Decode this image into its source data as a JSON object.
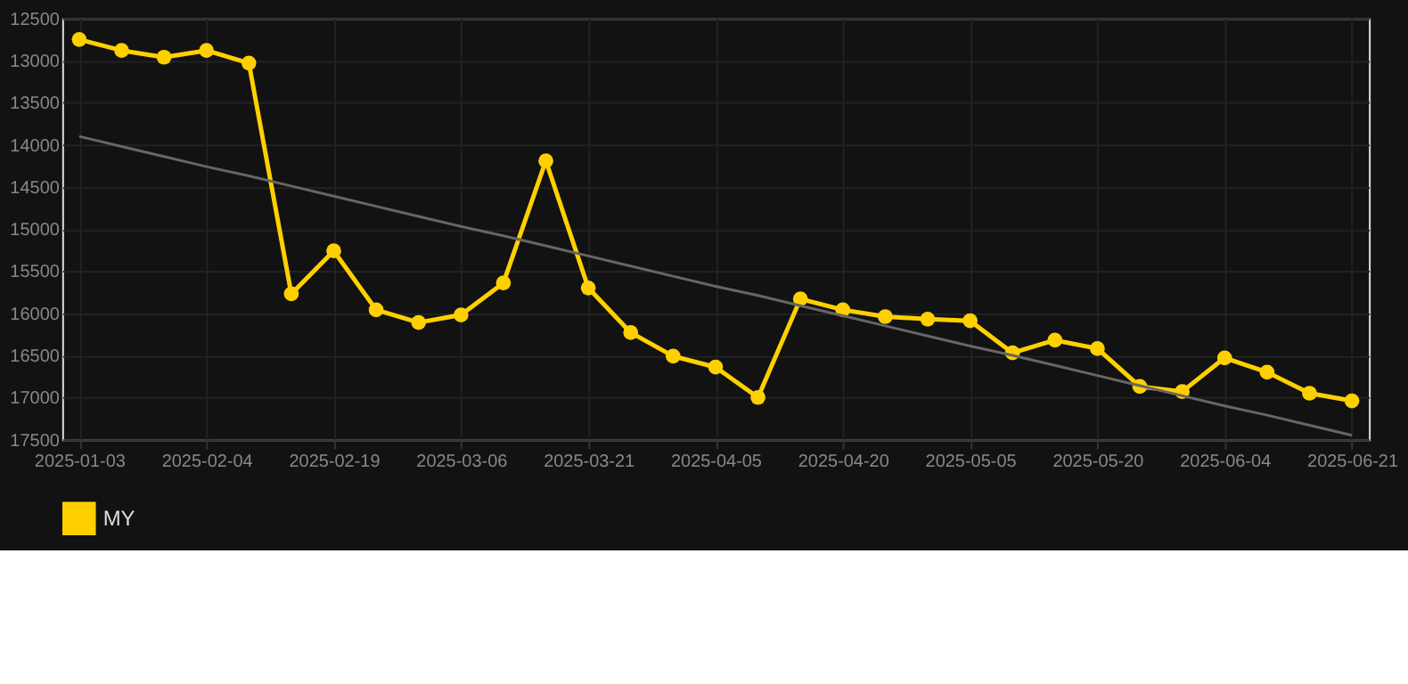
{
  "chart_data": {
    "type": "line",
    "categories": [
      "2025-01-03",
      null,
      null,
      "2025-02-04",
      null,
      null,
      "2025-02-19",
      null,
      null,
      "2025-03-06",
      null,
      null,
      "2025-03-21",
      null,
      null,
      "2025-04-05",
      null,
      null,
      "2025-04-20",
      null,
      null,
      "2025-05-05",
      null,
      null,
      "2025-05-20",
      null,
      null,
      "2025-06-04",
      null,
      null,
      "2025-06-21"
    ],
    "series": [
      {
        "name": "MY",
        "color": "#ffd000",
        "marker": "circle",
        "values": [
          12750,
          12880,
          12960,
          12880,
          13030,
          15770,
          15260,
          15960,
          16110,
          16020,
          15640,
          14190,
          15700,
          16230,
          16510,
          16640,
          17000,
          15830,
          15960,
          16040,
          16070,
          16090,
          16470,
          16320,
          16420,
          16870,
          16930,
          16530,
          16700,
          16950,
          17040
        ]
      },
      {
        "type": "line",
        "color": "#666666",
        "marker": "none",
        "values": [
          13900,
          14020,
          14140,
          14260,
          14370,
          14490,
          14610,
          14730,
          14850,
          14970,
          15080,
          15200,
          15320,
          15440,
          15560,
          15680,
          15790,
          15910,
          16030,
          16150,
          16270,
          16390,
          16500,
          16620,
          16740,
          16860,
          16980,
          17100,
          17210,
          17330,
          17450
        ]
      }
    ],
    "ylim": [
      17500,
      12500
    ],
    "yticks": [
      12500,
      13000,
      13500,
      14000,
      14500,
      15000,
      15500,
      16000,
      16500,
      17000,
      17500
    ],
    "grid": true,
    "legend": "bottom"
  }
}
